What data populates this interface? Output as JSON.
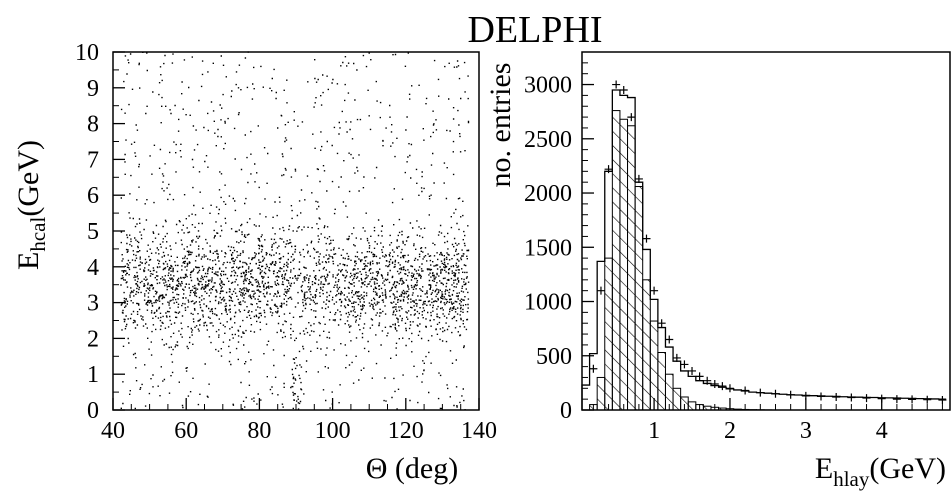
{
  "figure": {
    "title": "DELPHI"
  },
  "chart_data": [
    {
      "type": "scatter",
      "xlabel": "Θ (deg)",
      "ylabel_main": "E",
      "ylabel_sub": "hcal",
      "ylabel_unit": "(GeV)",
      "xlim": [
        40,
        140
      ],
      "ylim": [
        0,
        10
      ],
      "xticks": [
        40,
        60,
        80,
        100,
        120,
        140
      ],
      "yticks": [
        0,
        1,
        2,
        3,
        4,
        5,
        6,
        7,
        8,
        9,
        10
      ],
      "x_data_range": [
        42,
        137
      ],
      "density_peak_y": 3.2,
      "central_dip_x": 90,
      "point_color": "#000000",
      "grid": false
    },
    {
      "type": "bar",
      "xlabel_main": "E",
      "xlabel_sub": "hlay",
      "xlabel_unit": "(GeV)",
      "ylabel": "no. entries",
      "xlim": [
        0.05,
        4.9
      ],
      "ylim": [
        0,
        3300
      ],
      "xticks": [
        1,
        2,
        3,
        4
      ],
      "yticks": [
        0,
        500,
        1000,
        1500,
        2000,
        2500,
        3000
      ],
      "bin_width": 0.1,
      "bin_start": 0.05,
      "series": [
        {
          "kind": "hatched",
          "values": [
            0,
            50,
            300,
            1400,
            2760,
            2680,
            2620,
            2060,
            1200,
            820,
            530,
            330,
            200,
            120,
            75,
            50,
            35,
            25,
            18,
            12,
            8,
            5,
            3,
            2,
            1,
            0,
            0,
            0,
            0,
            0,
            0,
            0,
            0,
            0,
            0,
            0,
            0,
            0,
            0,
            0,
            0,
            0,
            0,
            0,
            0,
            0,
            0,
            0
          ]
        },
        {
          "kind": "outline",
          "values": [
            230,
            520,
            1370,
            2200,
            2950,
            2900,
            2880,
            2100,
            1480,
            1020,
            760,
            580,
            450,
            360,
            310,
            270,
            245,
            225,
            210,
            195,
            185,
            175,
            165,
            160,
            155,
            150,
            145,
            140,
            138,
            135,
            132,
            130,
            127,
            125,
            122,
            120,
            118,
            116,
            115,
            113,
            112,
            110,
            108,
            107,
            105,
            104,
            102,
            100
          ]
        }
      ],
      "markers": {
        "x": [
          0.2,
          0.3,
          0.4,
          0.5,
          0.6,
          0.7,
          0.8,
          0.9,
          1.0,
          1.1,
          1.2,
          1.3,
          1.4,
          1.5,
          1.6,
          1.7,
          1.8,
          1.9,
          2.0,
          2.2,
          2.4,
          2.6,
          2.8,
          3.0,
          3.2,
          3.4,
          3.6,
          3.8,
          4.0,
          4.2,
          4.4,
          4.6,
          4.8
        ],
        "y": [
          380,
          1100,
          2220,
          3000,
          2950,
          2700,
          2130,
          1580,
          1100,
          800,
          650,
          480,
          420,
          360,
          310,
          270,
          240,
          220,
          200,
          180,
          160,
          150,
          140,
          130,
          125,
          120,
          115,
          110,
          105,
          100,
          98,
          95,
          92
        ]
      },
      "grid": false
    }
  ]
}
